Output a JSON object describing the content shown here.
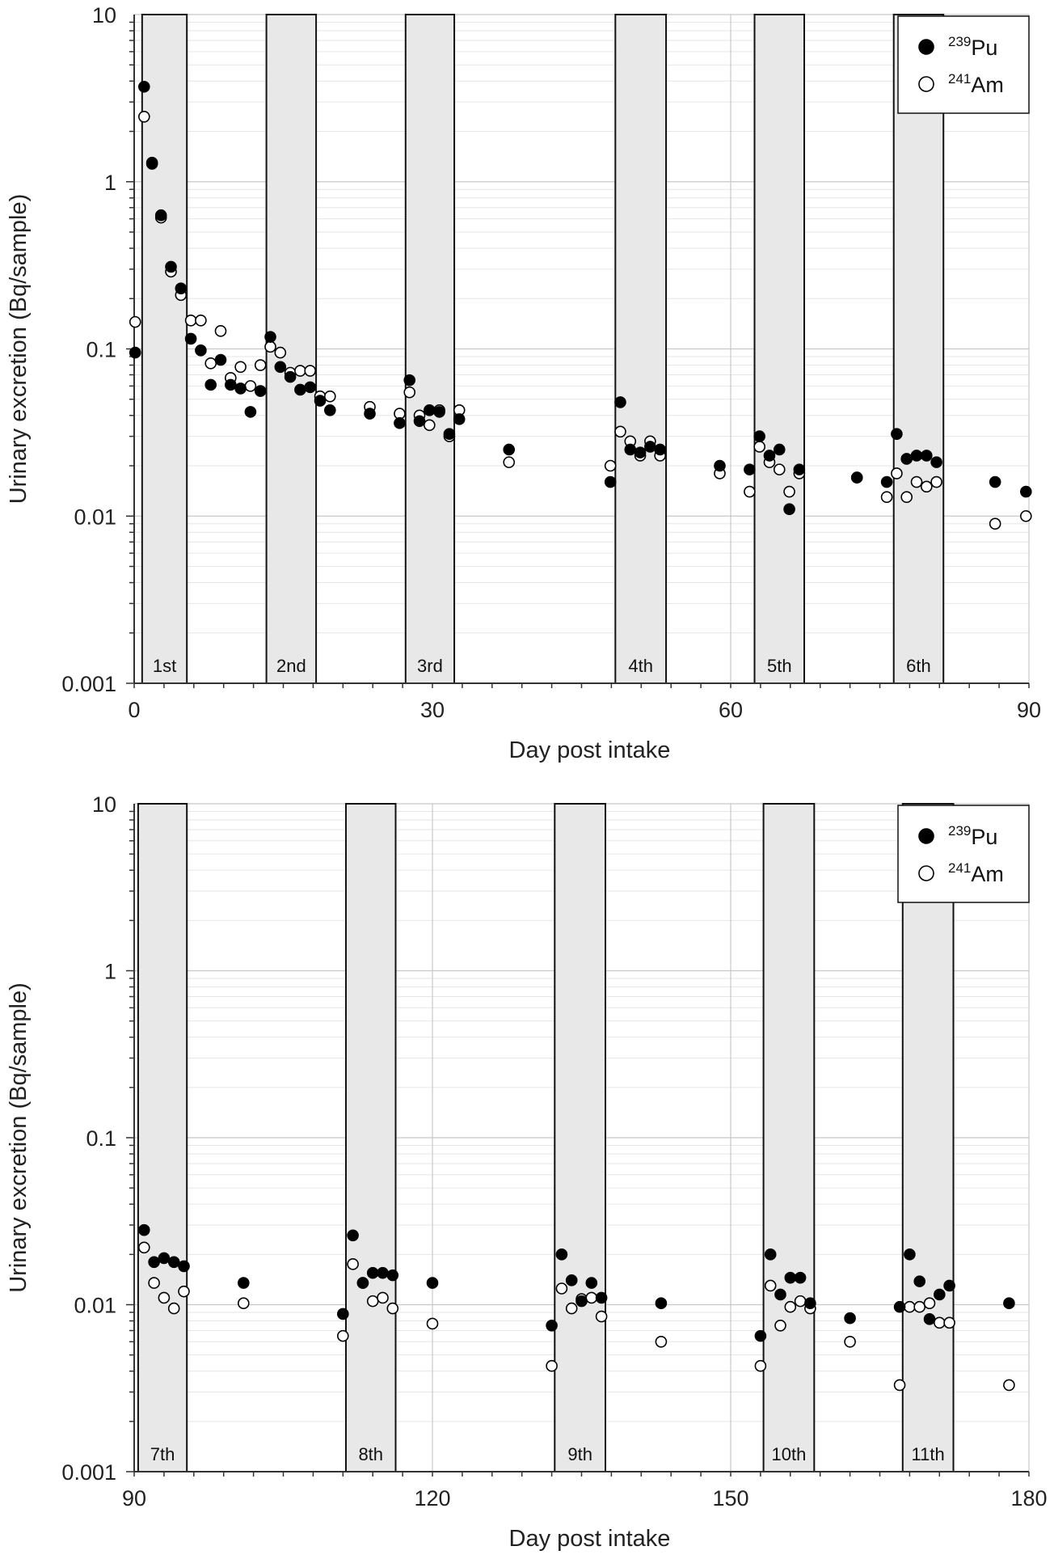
{
  "chart_data": [
    {
      "type": "scatter",
      "title": "",
      "xlabel": "Day post intake",
      "ylabel": "Urinary excretion (Bq/sample)",
      "xlim": [
        0,
        90
      ],
      "ylim": [
        0.001,
        10
      ],
      "yscale": "log",
      "xticks": [
        "0",
        "30",
        "60",
        "90"
      ],
      "yticks": [
        "0.001",
        "0.01",
        "0.1",
        "1",
        "10"
      ],
      "grid": true,
      "legend": {
        "placement": "top-right",
        "entries": [
          {
            "mass": "239",
            "element": "Pu",
            "marker": "filled"
          },
          {
            "mass": "241",
            "element": "Am",
            "marker": "open"
          }
        ]
      },
      "bands": [
        {
          "label": "1st",
          "x": [
            0.8,
            5.3
          ]
        },
        {
          "label": "2nd",
          "x": [
            13.3,
            18.3
          ]
        },
        {
          "label": "3rd",
          "x": [
            27.3,
            32.2
          ]
        },
        {
          "label": "4th",
          "x": [
            48.4,
            53.5
          ]
        },
        {
          "label": "5th",
          "x": [
            62.4,
            67.4
          ]
        },
        {
          "label": "6th",
          "x": [
            76.4,
            81.4
          ]
        }
      ],
      "series": [
        {
          "name": "239Pu",
          "marker": "filled",
          "points": [
            [
              0.1,
              0.095
            ],
            [
              1.0,
              3.7
            ],
            [
              1.8,
              1.28
            ],
            [
              2.7,
              0.63
            ],
            [
              3.7,
              0.31
            ],
            [
              4.7,
              0.23
            ],
            [
              5.7,
              0.115
            ],
            [
              6.7,
              0.098
            ],
            [
              7.7,
              0.061
            ],
            [
              8.7,
              0.086
            ],
            [
              9.7,
              0.061
            ],
            [
              10.7,
              0.058
            ],
            [
              11.7,
              0.042
            ],
            [
              12.7,
              0.056
            ],
            [
              13.7,
              0.118
            ],
            [
              14.7,
              0.078
            ],
            [
              15.7,
              0.068
            ],
            [
              16.7,
              0.057
            ],
            [
              17.7,
              0.059
            ],
            [
              18.7,
              0.049
            ],
            [
              19.7,
              0.043
            ],
            [
              23.7,
              0.041
            ],
            [
              26.7,
              0.036
            ],
            [
              27.7,
              0.065
            ],
            [
              28.7,
              0.037
            ],
            [
              29.7,
              0.043
            ],
            [
              30.7,
              0.042
            ],
            [
              31.7,
              0.031
            ],
            [
              32.7,
              0.038
            ],
            [
              37.7,
              0.025
            ],
            [
              47.9,
              0.016
            ],
            [
              48.9,
              0.048
            ],
            [
              49.9,
              0.025
            ],
            [
              50.9,
              0.024
            ],
            [
              51.9,
              0.026
            ],
            [
              52.9,
              0.025
            ],
            [
              58.9,
              0.02
            ],
            [
              61.9,
              0.019
            ],
            [
              62.9,
              0.03
            ],
            [
              63.9,
              0.023
            ],
            [
              64.9,
              0.025
            ],
            [
              65.9,
              0.011
            ],
            [
              66.9,
              0.019
            ],
            [
              72.7,
              0.017
            ],
            [
              75.7,
              0.016
            ],
            [
              76.7,
              0.031
            ],
            [
              77.7,
              0.022
            ],
            [
              78.7,
              0.023
            ],
            [
              79.7,
              0.023
            ],
            [
              80.7,
              0.021
            ],
            [
              86.6,
              0.016
            ],
            [
              89.7,
              0.014
            ]
          ]
        },
        {
          "name": "241Am",
          "marker": "open",
          "points": [
            [
              0.1,
              0.145
            ],
            [
              1.0,
              2.45
            ],
            [
              1.8,
              1.3
            ],
            [
              2.7,
              0.61
            ],
            [
              3.7,
              0.29
            ],
            [
              4.7,
              0.21
            ],
            [
              5.7,
              0.148
            ],
            [
              6.7,
              0.148
            ],
            [
              7.7,
              0.082
            ],
            [
              8.7,
              0.128
            ],
            [
              9.7,
              0.067
            ],
            [
              10.7,
              0.078
            ],
            [
              11.7,
              0.06
            ],
            [
              12.7,
              0.08
            ],
            [
              13.7,
              0.103
            ],
            [
              14.7,
              0.095
            ],
            [
              15.7,
              0.072
            ],
            [
              16.7,
              0.074
            ],
            [
              17.7,
              0.074
            ],
            [
              18.7,
              0.052
            ],
            [
              19.7,
              0.052
            ],
            [
              23.7,
              0.045
            ],
            [
              26.7,
              0.041
            ],
            [
              27.7,
              0.055
            ],
            [
              28.7,
              0.04
            ],
            [
              29.7,
              0.035
            ],
            [
              30.7,
              0.043
            ],
            [
              31.7,
              0.03
            ],
            [
              32.7,
              0.043
            ],
            [
              37.7,
              0.021
            ],
            [
              47.9,
              0.02
            ],
            [
              48.9,
              0.032
            ],
            [
              49.9,
              0.028
            ],
            [
              50.9,
              0.023
            ],
            [
              51.9,
              0.028
            ],
            [
              52.9,
              0.023
            ],
            [
              58.9,
              0.018
            ],
            [
              61.9,
              0.014
            ],
            [
              62.9,
              0.026
            ],
            [
              63.9,
              0.021
            ],
            [
              64.9,
              0.019
            ],
            [
              65.9,
              0.014
            ],
            [
              66.9,
              0.018
            ],
            [
              72.7,
              0.017
            ],
            [
              75.7,
              0.013
            ],
            [
              76.7,
              0.018
            ],
            [
              77.7,
              0.013
            ],
            [
              78.7,
              0.016
            ],
            [
              79.7,
              0.015
            ],
            [
              80.7,
              0.016
            ],
            [
              86.6,
              0.009
            ],
            [
              89.7,
              0.01
            ]
          ]
        }
      ]
    },
    {
      "type": "scatter",
      "title": "",
      "xlabel": "Day post intake",
      "ylabel": "Urinary excretion (Bq/sample)",
      "xlim": [
        90,
        180
      ],
      "ylim": [
        0.001,
        10
      ],
      "yscale": "log",
      "xticks": [
        "90",
        "120",
        "150",
        "180"
      ],
      "yticks": [
        "0.001",
        "0.01",
        "0.1",
        "1",
        "10"
      ],
      "grid": true,
      "legend": {
        "placement": "top-right",
        "entries": [
          {
            "mass": "239",
            "element": "Pu",
            "marker": "filled"
          },
          {
            "mass": "241",
            "element": "Am",
            "marker": "open"
          }
        ]
      },
      "bands": [
        {
          "label": "7th",
          "x": [
            90.4,
            95.3
          ]
        },
        {
          "label": "8th",
          "x": [
            111.3,
            116.3
          ]
        },
        {
          "label": "9th",
          "x": [
            132.3,
            137.4
          ]
        },
        {
          "label": "10th",
          "x": [
            153.3,
            158.4
          ]
        },
        {
          "label": "11th",
          "x": [
            167.3,
            172.4
          ]
        }
      ],
      "series": [
        {
          "name": "239Pu",
          "marker": "filled",
          "points": [
            [
              91.0,
              0.028
            ],
            [
              92.0,
              0.018
            ],
            [
              93.0,
              0.019
            ],
            [
              94.0,
              0.018
            ],
            [
              95.0,
              0.017
            ],
            [
              101.0,
              0.0135
            ],
            [
              111.0,
              0.0088
            ],
            [
              112.0,
              0.026
            ],
            [
              113.0,
              0.0135
            ],
            [
              114.0,
              0.0155
            ],
            [
              115.0,
              0.0155
            ],
            [
              116.0,
              0.015
            ],
            [
              120.0,
              0.0135
            ],
            [
              132.0,
              0.0075
            ],
            [
              133.0,
              0.02
            ],
            [
              134.0,
              0.014
            ],
            [
              135.0,
              0.0105
            ],
            [
              136.0,
              0.0135
            ],
            [
              137.0,
              0.011
            ],
            [
              143.0,
              0.0102
            ],
            [
              153.0,
              0.0065
            ],
            [
              154.0,
              0.02
            ],
            [
              155.0,
              0.0115
            ],
            [
              156.0,
              0.0145
            ],
            [
              157.0,
              0.0145
            ],
            [
              158.0,
              0.0102
            ],
            [
              162.0,
              0.0083
            ],
            [
              167.0,
              0.0097
            ],
            [
              168.0,
              0.02
            ],
            [
              169.0,
              0.0138
            ],
            [
              170.0,
              0.0082
            ],
            [
              171.0,
              0.0115
            ],
            [
              172.0,
              0.013
            ],
            [
              178.0,
              0.0102
            ]
          ]
        },
        {
          "name": "241Am",
          "marker": "open",
          "points": [
            [
              91.0,
              0.022
            ],
            [
              92.0,
              0.0135
            ],
            [
              93.0,
              0.011
            ],
            [
              94.0,
              0.0095
            ],
            [
              95.0,
              0.012
            ],
            [
              101.0,
              0.0102
            ],
            [
              111.0,
              0.0065
            ],
            [
              112.0,
              0.0175
            ],
            [
              113.0,
              0.0135
            ],
            [
              114.0,
              0.0105
            ],
            [
              115.0,
              0.011
            ],
            [
              116.0,
              0.0095
            ],
            [
              120.0,
              0.0077
            ],
            [
              132.0,
              0.0043
            ],
            [
              133.0,
              0.0125
            ],
            [
              134.0,
              0.0095
            ],
            [
              135.0,
              0.0108
            ],
            [
              136.0,
              0.011
            ],
            [
              137.0,
              0.0085
            ],
            [
              143.0,
              0.006
            ],
            [
              153.0,
              0.0043
            ],
            [
              154.0,
              0.013
            ],
            [
              155.0,
              0.0075
            ],
            [
              156.0,
              0.0097
            ],
            [
              157.0,
              0.0105
            ],
            [
              158.0,
              0.0095
            ],
            [
              162.0,
              0.006
            ],
            [
              167.0,
              0.0033
            ],
            [
              168.0,
              0.0097
            ],
            [
              169.0,
              0.0097
            ],
            [
              170.0,
              0.0102
            ],
            [
              171.0,
              0.0078
            ],
            [
              172.0,
              0.0078
            ],
            [
              178.0,
              0.0033
            ]
          ]
        }
      ]
    }
  ]
}
